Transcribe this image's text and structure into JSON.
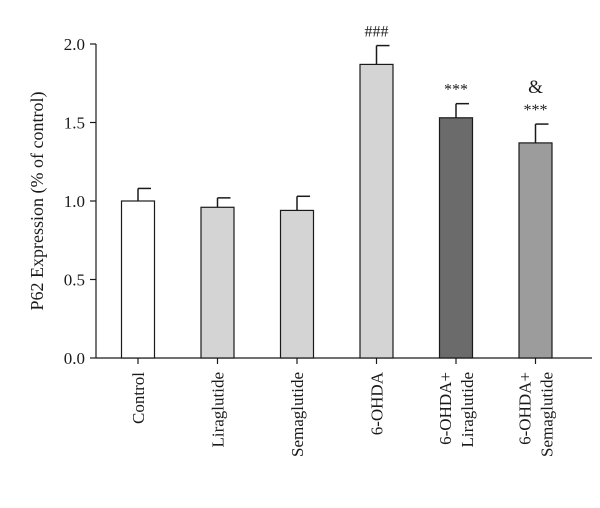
{
  "chart_data": {
    "type": "bar",
    "title": "",
    "xlabel": "",
    "ylabel": "P62 Expression (% of control)",
    "ylim": [
      0,
      2.0
    ],
    "yticks": [
      "0.0",
      "0.5",
      "1.0",
      "1.5",
      "2.0"
    ],
    "grid": false,
    "categories": [
      [
        "Control"
      ],
      [
        "Liraglutide"
      ],
      [
        "Semaglutide"
      ],
      [
        "6-OHDA"
      ],
      [
        "6-OHDA+",
        "Liraglutide"
      ],
      [
        "6-OHDA+",
        "Semaglutide"
      ]
    ],
    "values": [
      1.0,
      0.96,
      0.94,
      1.87,
      1.53,
      1.37
    ],
    "errors": [
      0.08,
      0.06,
      0.09,
      0.12,
      0.09,
      0.12
    ],
    "bar_colors": [
      "#ffffff",
      "#d4d4d4",
      "#d4d4d4",
      "#d4d4d4",
      "#6b6b6b",
      "#9c9c9c"
    ],
    "annotations": [
      [],
      [],
      [],
      [
        "###"
      ],
      [
        "***"
      ],
      [
        "&",
        "***"
      ]
    ]
  }
}
